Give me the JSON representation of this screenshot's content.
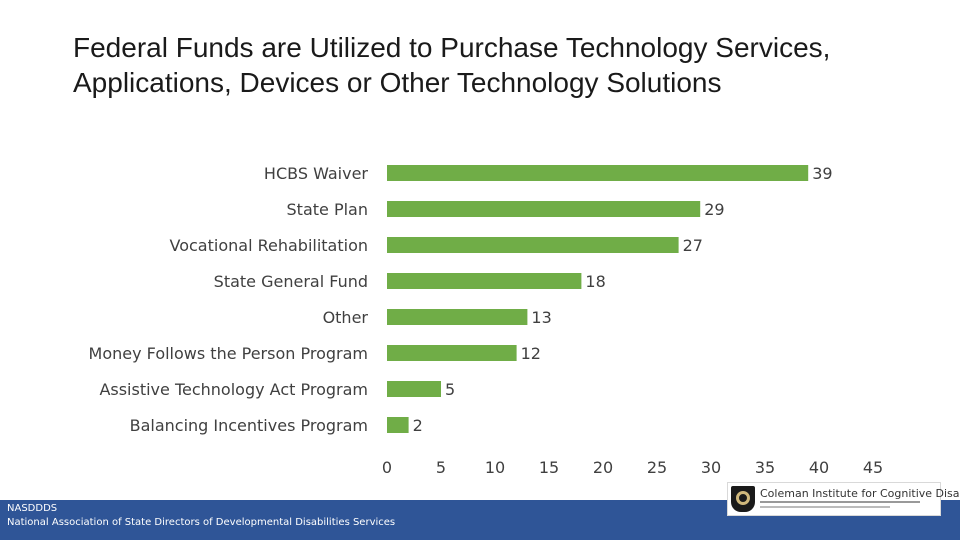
{
  "title": "Federal Funds are Utilized to Purchase Technology Services, Applications, Devices or Other Technology Solutions",
  "chart_data": {
    "type": "bar",
    "orientation": "horizontal",
    "categories": [
      "HCBS Waiver",
      "State Plan",
      "Vocational Rehabilitation",
      "State General Fund",
      "Other",
      "Money Follows the Person Program",
      "Assistive Technology Act Program",
      "Balancing Incentives Program"
    ],
    "values": [
      39,
      29,
      27,
      18,
      13,
      12,
      5,
      2
    ],
    "xlim": [
      0,
      45
    ],
    "xticks": [
      "0",
      "5",
      "10",
      "15",
      "20",
      "25",
      "30",
      "35",
      "40",
      "45"
    ],
    "data_labels": true,
    "grid": false,
    "legend": "none",
    "bar_color": "#70ad47"
  },
  "footer": {
    "abbr": "NASDDDS",
    "org": "National Association of State Directors of Developmental Disabilities Services"
  },
  "logo": {
    "text": "Coleman Institute for Cognitive Disabilities"
  }
}
